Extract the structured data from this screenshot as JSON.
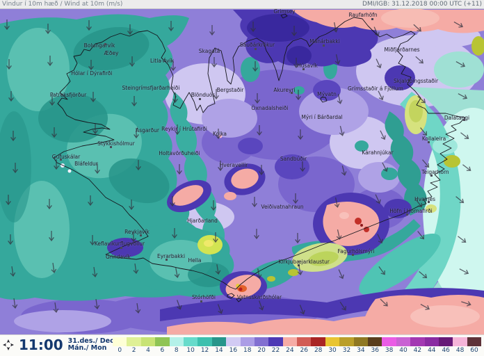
{
  "header": {
    "left": "Vindur í 10m hæð / Wind at 10m (m/s)",
    "right": "DMI/IGB: 31.12.2018 00:00 UTC (+11)"
  },
  "footer": {
    "time": "11:00",
    "date_line1": "31.des./ Dec",
    "date_line2": "Mán./ Mon"
  },
  "scale": {
    "items": [
      {
        "value": "0",
        "color": "#feffd6"
      },
      {
        "value": "2",
        "color": "#dff096"
      },
      {
        "value": "4",
        "color": "#c8e375"
      },
      {
        "value": "6",
        "color": "#8fc455"
      },
      {
        "value": "8",
        "color": "#b4f1e9"
      },
      {
        "value": "10",
        "color": "#67dbcb"
      },
      {
        "value": "12",
        "color": "#3dc0ae"
      },
      {
        "value": "14",
        "color": "#27968b"
      },
      {
        "value": "16",
        "color": "#d2cbf4"
      },
      {
        "value": "18",
        "color": "#ab9de6"
      },
      {
        "value": "20",
        "color": "#8270d1"
      },
      {
        "value": "22",
        "color": "#4d39b5"
      },
      {
        "value": "24",
        "color": "#f6aca6"
      },
      {
        "value": "26",
        "color": "#d15c55"
      },
      {
        "value": "28",
        "color": "#a92524"
      },
      {
        "value": "30",
        "color": "#e9c532"
      },
      {
        "value": "32",
        "color": "#ba9f2a"
      },
      {
        "value": "34",
        "color": "#8f7822"
      },
      {
        "value": "36",
        "color": "#593e1d"
      },
      {
        "value": "38",
        "color": "#ea5ce5"
      },
      {
        "value": "40",
        "color": "#c963d3"
      },
      {
        "value": "42",
        "color": "#a338b2"
      },
      {
        "value": "44",
        "color": "#8a2ba2"
      },
      {
        "value": "46",
        "color": "#671a77"
      },
      {
        "value": "48",
        "color": "#f5b4d8"
      },
      {
        "value": "60",
        "color": "#5e3239"
      }
    ]
  },
  "map": {
    "labels": [
      {
        "text": "Bolungarvík"
      },
      {
        "text": "Æðey"
      },
      {
        "text": "Litla-Ávík"
      },
      {
        "text": "Skagatá"
      },
      {
        "text": "Hólar í Dýrafirði"
      },
      {
        "text": "Steingrímsfjarðarheiði"
      },
      {
        "text": "Blönduós"
      },
      {
        "text": "Patreksfjörður"
      },
      {
        "text": "Grímsey"
      },
      {
        "text": "Raufarhöfn"
      },
      {
        "text": "Sauðárkrókur"
      },
      {
        "text": "Mánárbakki"
      },
      {
        "text": "Húsavík"
      },
      {
        "text": "Akureyri"
      },
      {
        "text": "Öxnadalsheiði"
      },
      {
        "text": "Bergstaðir"
      },
      {
        "text": "Mývatn"
      },
      {
        "text": "Mýri í Bárðardal"
      },
      {
        "text": "Reykir í Hrútafirði"
      },
      {
        "text": "Ásgarður"
      },
      {
        "text": "Kolka"
      },
      {
        "text": "Holtavörðuheiði"
      },
      {
        "text": "Stykkishólmur"
      },
      {
        "text": "Gufuskálar"
      },
      {
        "text": "Bláfeldur"
      },
      {
        "text": "Hveravellir"
      },
      {
        "text": "Sandbúðir"
      },
      {
        "text": "Kárahnjúkar"
      },
      {
        "text": "Grímsstaðir á Fjöllum"
      },
      {
        "text": "Miðfjarðarnes"
      },
      {
        "text": "Skjaldþingsstaðir"
      },
      {
        "text": "Dalatangi"
      },
      {
        "text": "Kollaleira"
      },
      {
        "text": "Teigarhorn"
      },
      {
        "text": "Hvalnes"
      },
      {
        "text": "Höfn í Hornafirði"
      },
      {
        "text": "Veiðivatnahraun"
      },
      {
        "text": "Hjarðarland"
      },
      {
        "text": "Reykjavík"
      },
      {
        "text": "Keflavíkurflugvöllur"
      },
      {
        "text": "Grindavík"
      },
      {
        "text": "Eyrarbakki"
      },
      {
        "text": "Hella"
      },
      {
        "text": "Stórhöfði"
      },
      {
        "text": "Vatnsskarðshólar"
      },
      {
        "text": "Kirkjubæjarklaustur"
      },
      {
        "text": "Fagurhólsmýri"
      }
    ]
  }
}
